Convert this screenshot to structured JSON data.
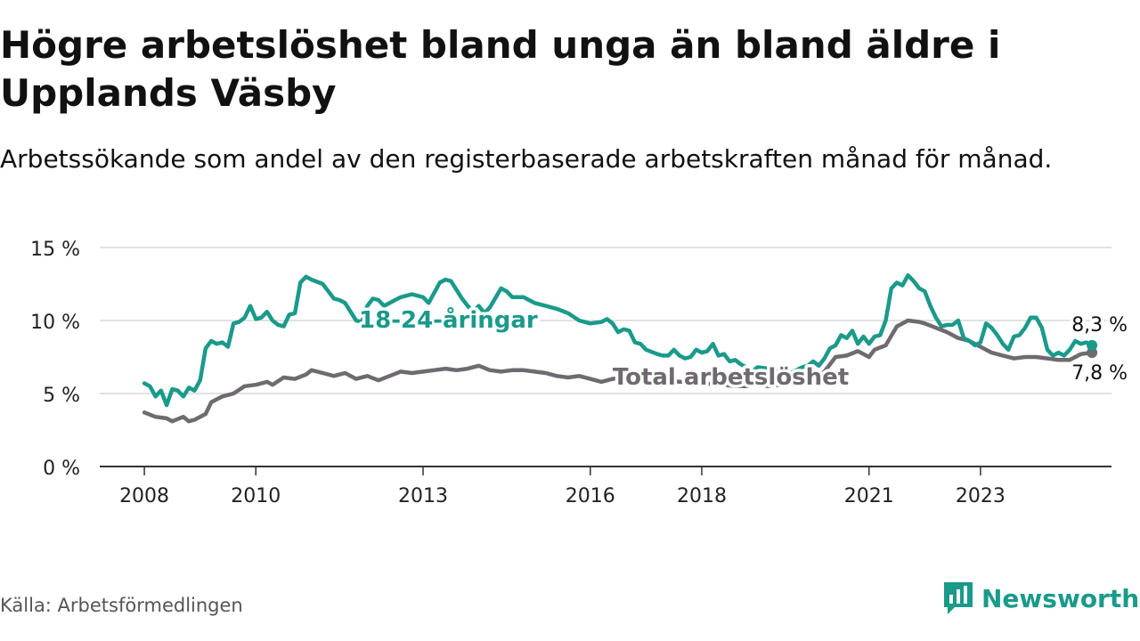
{
  "title": "Högre arbetslöshet bland unga än bland äldre i Upplands Väsby",
  "subtitle": "Arbetssökande som andel av den registerbaserade arbetskraften månad för månad.",
  "source": "Källa: Arbetsförmedlingen",
  "brand": {
    "name": "Newsworthy",
    "icon": "newsworthy-logo-icon"
  },
  "colors": {
    "youth": "#1a9a8a",
    "total": "#6f6a70",
    "grid": "#d9d9d9",
    "axis": "#333333"
  },
  "chart_data": {
    "type": "line",
    "title": "Högre arbetslöshet bland unga än bland äldre i Upplands Väsby",
    "xlabel": "",
    "ylabel": "",
    "ylim": [
      0,
      15
    ],
    "xlim": [
      2007.2,
      2025.35
    ],
    "y_ticks": [
      {
        "value": 0,
        "label": "0 %"
      },
      {
        "value": 5,
        "label": "5 %"
      },
      {
        "value": 10,
        "label": "10 %"
      },
      {
        "value": 15,
        "label": "15 %"
      }
    ],
    "x_ticks": [
      {
        "value": 2008,
        "label": "2008"
      },
      {
        "value": 2010,
        "label": "2010"
      },
      {
        "value": 2013,
        "label": "2013"
      },
      {
        "value": 2016,
        "label": "2016"
      },
      {
        "value": 2018,
        "label": "2018"
      },
      {
        "value": 2021,
        "label": "2021"
      },
      {
        "value": 2023,
        "label": "2023"
      }
    ],
    "series": [
      {
        "name": "18-24-åringar",
        "label": "18-24-åringar",
        "color": "#1a9a8a",
        "end_label": "8,3 %",
        "points": [
          [
            2008.0,
            5.7
          ],
          [
            2008.1,
            5.5
          ],
          [
            2008.2,
            4.8
          ],
          [
            2008.3,
            5.2
          ],
          [
            2008.4,
            4.2
          ],
          [
            2008.5,
            5.3
          ],
          [
            2008.6,
            5.2
          ],
          [
            2008.7,
            4.8
          ],
          [
            2008.8,
            5.4
          ],
          [
            2008.9,
            5.2
          ],
          [
            2009.0,
            5.9
          ],
          [
            2009.1,
            8.1
          ],
          [
            2009.2,
            8.6
          ],
          [
            2009.3,
            8.4
          ],
          [
            2009.4,
            8.5
          ],
          [
            2009.5,
            8.2
          ],
          [
            2009.6,
            9.8
          ],
          [
            2009.7,
            9.9
          ],
          [
            2009.8,
            10.2
          ],
          [
            2009.9,
            11.0
          ],
          [
            2010.0,
            10.1
          ],
          [
            2010.1,
            10.2
          ],
          [
            2010.2,
            10.6
          ],
          [
            2010.3,
            10.0
          ],
          [
            2010.4,
            9.7
          ],
          [
            2010.5,
            9.6
          ],
          [
            2010.6,
            10.4
          ],
          [
            2010.7,
            10.5
          ],
          [
            2010.8,
            12.6
          ],
          [
            2010.9,
            13.0
          ],
          [
            2011.0,
            12.8
          ],
          [
            2011.2,
            12.5
          ],
          [
            2011.3,
            12.0
          ],
          [
            2011.4,
            11.5
          ],
          [
            2011.5,
            11.4
          ],
          [
            2011.6,
            11.2
          ],
          [
            2011.8,
            10.0
          ],
          [
            2011.9,
            9.9
          ],
          [
            2012.0,
            11.0
          ],
          [
            2012.1,
            11.5
          ],
          [
            2012.2,
            11.4
          ],
          [
            2012.3,
            11.0
          ],
          [
            2012.5,
            11.4
          ],
          [
            2012.6,
            11.6
          ],
          [
            2012.8,
            11.8
          ],
          [
            2013.0,
            11.6
          ],
          [
            2013.1,
            11.2
          ],
          [
            2013.3,
            12.6
          ],
          [
            2013.4,
            12.8
          ],
          [
            2013.5,
            12.7
          ],
          [
            2013.7,
            11.5
          ],
          [
            2013.8,
            11.0
          ],
          [
            2013.9,
            10.6
          ],
          [
            2014.0,
            11.0
          ],
          [
            2014.1,
            10.5
          ],
          [
            2014.2,
            10.9
          ],
          [
            2014.4,
            12.2
          ],
          [
            2014.5,
            12.0
          ],
          [
            2014.6,
            11.6
          ],
          [
            2014.8,
            11.6
          ],
          [
            2015.0,
            11.2
          ],
          [
            2015.2,
            11.0
          ],
          [
            2015.4,
            10.8
          ],
          [
            2015.6,
            10.5
          ],
          [
            2015.8,
            10.0
          ],
          [
            2016.0,
            9.8
          ],
          [
            2016.2,
            9.9
          ],
          [
            2016.3,
            10.1
          ],
          [
            2016.4,
            9.8
          ],
          [
            2016.5,
            9.2
          ],
          [
            2016.6,
            9.4
          ],
          [
            2016.7,
            9.3
          ],
          [
            2016.8,
            8.5
          ],
          [
            2016.9,
            8.4
          ],
          [
            2017.0,
            8.0
          ],
          [
            2017.2,
            7.7
          ],
          [
            2017.3,
            7.6
          ],
          [
            2017.4,
            7.6
          ],
          [
            2017.5,
            8.0
          ],
          [
            2017.6,
            7.6
          ],
          [
            2017.7,
            7.4
          ],
          [
            2017.8,
            7.5
          ],
          [
            2017.9,
            8.0
          ],
          [
            2018.0,
            7.8
          ],
          [
            2018.1,
            7.9
          ],
          [
            2018.2,
            8.4
          ],
          [
            2018.3,
            7.6
          ],
          [
            2018.4,
            7.7
          ],
          [
            2018.5,
            7.2
          ],
          [
            2018.6,
            7.3
          ],
          [
            2018.7,
            7.0
          ],
          [
            2018.8,
            6.8
          ],
          [
            2018.9,
            6.5
          ],
          [
            2019.0,
            6.8
          ],
          [
            2019.2,
            6.7
          ],
          [
            2019.4,
            6.6
          ],
          [
            2019.5,
            6.0
          ],
          [
            2019.6,
            6.4
          ],
          [
            2019.8,
            6.8
          ],
          [
            2019.9,
            6.9
          ],
          [
            2020.0,
            7.2
          ],
          [
            2020.1,
            6.9
          ],
          [
            2020.2,
            7.4
          ],
          [
            2020.3,
            8.1
          ],
          [
            2020.4,
            8.3
          ],
          [
            2020.5,
            9.0
          ],
          [
            2020.6,
            8.8
          ],
          [
            2020.7,
            9.3
          ],
          [
            2020.8,
            8.4
          ],
          [
            2020.9,
            8.9
          ],
          [
            2021.0,
            8.4
          ],
          [
            2021.1,
            8.9
          ],
          [
            2021.2,
            9.0
          ],
          [
            2021.3,
            10.0
          ],
          [
            2021.4,
            12.2
          ],
          [
            2021.5,
            12.6
          ],
          [
            2021.6,
            12.4
          ],
          [
            2021.7,
            13.1
          ],
          [
            2021.8,
            12.7
          ],
          [
            2021.9,
            12.2
          ],
          [
            2022.0,
            12.0
          ],
          [
            2022.1,
            11.0
          ],
          [
            2022.2,
            10.2
          ],
          [
            2022.3,
            9.6
          ],
          [
            2022.4,
            9.7
          ],
          [
            2022.5,
            9.7
          ],
          [
            2022.6,
            10.0
          ],
          [
            2022.7,
            8.8
          ],
          [
            2022.8,
            8.6
          ],
          [
            2022.9,
            8.3
          ],
          [
            2023.0,
            8.5
          ],
          [
            2023.1,
            9.8
          ],
          [
            2023.2,
            9.5
          ],
          [
            2023.3,
            9.0
          ],
          [
            2023.4,
            8.4
          ],
          [
            2023.5,
            8.0
          ],
          [
            2023.6,
            8.9
          ],
          [
            2023.7,
            9.0
          ],
          [
            2023.8,
            9.5
          ],
          [
            2023.9,
            10.2
          ],
          [
            2024.0,
            10.2
          ],
          [
            2024.1,
            9.5
          ],
          [
            2024.2,
            8.0
          ],
          [
            2024.3,
            7.6
          ],
          [
            2024.4,
            7.8
          ],
          [
            2024.5,
            7.6
          ],
          [
            2024.6,
            8.0
          ],
          [
            2024.7,
            8.6
          ],
          [
            2024.8,
            8.4
          ],
          [
            2024.9,
            8.5
          ],
          [
            2025.0,
            8.3
          ]
        ]
      },
      {
        "name": "Total arbetslöshet",
        "label": "Total arbetslöshet",
        "color": "#6f6a70",
        "end_label": "7,8 %",
        "points": [
          [
            2008.0,
            3.7
          ],
          [
            2008.2,
            3.4
          ],
          [
            2008.4,
            3.3
          ],
          [
            2008.5,
            3.1
          ],
          [
            2008.7,
            3.4
          ],
          [
            2008.8,
            3.1
          ],
          [
            2008.9,
            3.2
          ],
          [
            2009.0,
            3.4
          ],
          [
            2009.1,
            3.6
          ],
          [
            2009.2,
            4.4
          ],
          [
            2009.4,
            4.8
          ],
          [
            2009.6,
            5.0
          ],
          [
            2009.8,
            5.5
          ],
          [
            2010.0,
            5.6
          ],
          [
            2010.2,
            5.8
          ],
          [
            2010.3,
            5.6
          ],
          [
            2010.5,
            6.1
          ],
          [
            2010.7,
            6.0
          ],
          [
            2010.9,
            6.3
          ],
          [
            2011.0,
            6.6
          ],
          [
            2011.2,
            6.4
          ],
          [
            2011.4,
            6.2
          ],
          [
            2011.6,
            6.4
          ],
          [
            2011.8,
            6.0
          ],
          [
            2012.0,
            6.2
          ],
          [
            2012.2,
            5.9
          ],
          [
            2012.4,
            6.2
          ],
          [
            2012.6,
            6.5
          ],
          [
            2012.8,
            6.4
          ],
          [
            2013.0,
            6.5
          ],
          [
            2013.2,
            6.6
          ],
          [
            2013.4,
            6.7
          ],
          [
            2013.6,
            6.6
          ],
          [
            2013.8,
            6.7
          ],
          [
            2014.0,
            6.9
          ],
          [
            2014.2,
            6.6
          ],
          [
            2014.4,
            6.5
          ],
          [
            2014.6,
            6.6
          ],
          [
            2014.8,
            6.6
          ],
          [
            2015.0,
            6.5
          ],
          [
            2015.2,
            6.4
          ],
          [
            2015.4,
            6.2
          ],
          [
            2015.6,
            6.1
          ],
          [
            2015.8,
            6.2
          ],
          [
            2016.0,
            6.0
          ],
          [
            2016.2,
            5.8
          ],
          [
            2016.4,
            6.0
          ],
          [
            2016.6,
            6.1
          ],
          [
            2016.8,
            5.9
          ],
          [
            2017.0,
            6.0
          ],
          [
            2017.2,
            5.8
          ],
          [
            2017.4,
            5.9
          ],
          [
            2017.6,
            5.8
          ],
          [
            2017.8,
            5.8
          ],
          [
            2018.0,
            5.6
          ],
          [
            2018.2,
            5.7
          ],
          [
            2018.4,
            5.6
          ],
          [
            2018.6,
            5.5
          ],
          [
            2018.8,
            5.5
          ],
          [
            2019.0,
            5.6
          ],
          [
            2019.2,
            5.5
          ],
          [
            2019.4,
            5.6
          ],
          [
            2019.6,
            5.8
          ],
          [
            2019.8,
            5.6
          ],
          [
            2020.0,
            5.9
          ],
          [
            2020.2,
            6.5
          ],
          [
            2020.4,
            7.5
          ],
          [
            2020.6,
            7.6
          ],
          [
            2020.8,
            7.9
          ],
          [
            2021.0,
            7.5
          ],
          [
            2021.1,
            8.0
          ],
          [
            2021.3,
            8.3
          ],
          [
            2021.5,
            9.6
          ],
          [
            2021.7,
            10.0
          ],
          [
            2021.9,
            9.9
          ],
          [
            2022.0,
            9.8
          ],
          [
            2022.2,
            9.5
          ],
          [
            2022.4,
            9.2
          ],
          [
            2022.6,
            8.8
          ],
          [
            2022.8,
            8.6
          ],
          [
            2023.0,
            8.2
          ],
          [
            2023.2,
            7.8
          ],
          [
            2023.4,
            7.6
          ],
          [
            2023.6,
            7.4
          ],
          [
            2023.8,
            7.5
          ],
          [
            2024.0,
            7.5
          ],
          [
            2024.2,
            7.4
          ],
          [
            2024.4,
            7.3
          ],
          [
            2024.6,
            7.3
          ],
          [
            2024.8,
            7.7
          ],
          [
            2025.0,
            7.8
          ]
        ]
      }
    ]
  }
}
